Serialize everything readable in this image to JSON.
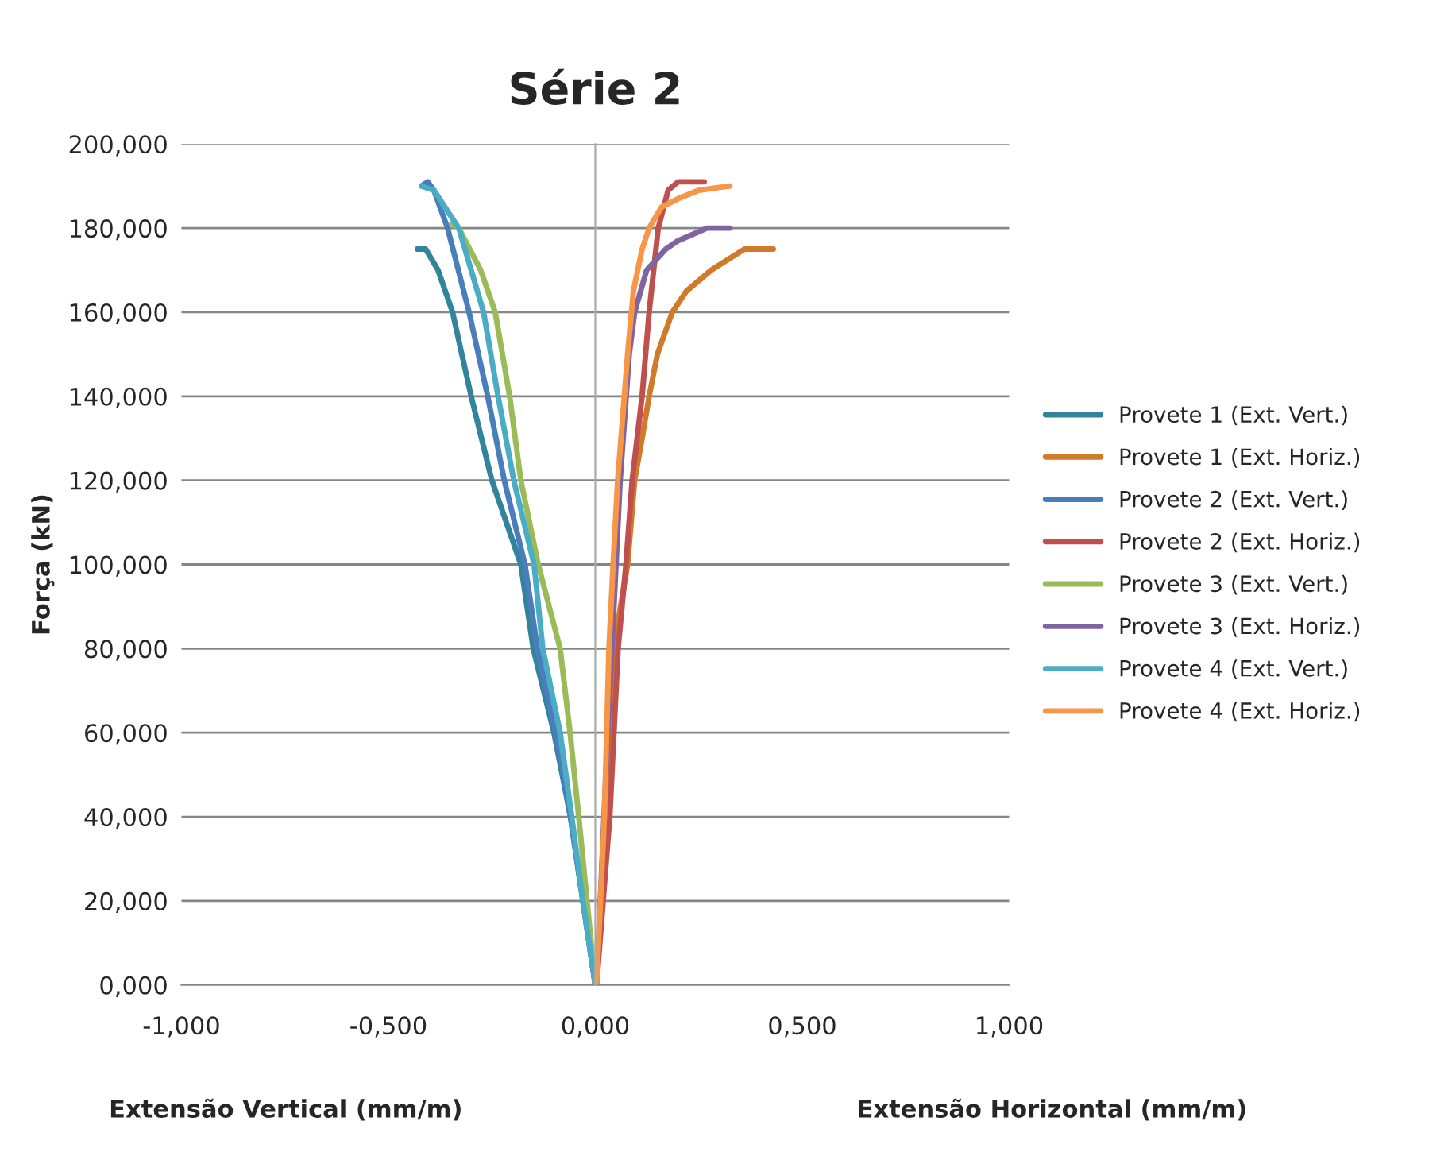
{
  "chart_data": {
    "type": "line",
    "title": "Série 2",
    "ylabel": "Força (kN)",
    "xlabel": "Extensão Vertical (mm/m)",
    "annotations": [
      "Extensão Horizontal (mm/m)"
    ],
    "xlim": [
      -1,
      1
    ],
    "ylim": [
      0,
      200
    ],
    "xticks": [
      {
        "value": -1,
        "label": "-1,000"
      },
      {
        "value": -0.5,
        "label": "-0,500"
      },
      {
        "value": 0,
        "label": "0,000"
      },
      {
        "value": 0.5,
        "label": "0,500"
      },
      {
        "value": 1,
        "label": "1,000"
      }
    ],
    "yticks": [
      {
        "value": 0,
        "label": "0,000"
      },
      {
        "value": 20,
        "label": "20,000"
      },
      {
        "value": 40,
        "label": "40,000"
      },
      {
        "value": 60,
        "label": "60,000"
      },
      {
        "value": 80,
        "label": "80,000"
      },
      {
        "value": 100,
        "label": "100,000"
      },
      {
        "value": 120,
        "label": "120,000"
      },
      {
        "value": 140,
        "label": "140,000"
      },
      {
        "value": 160,
        "label": "160,000"
      },
      {
        "value": 180,
        "label": "180,000"
      },
      {
        "value": 200,
        "label": "200,000"
      }
    ],
    "grid": "y",
    "legend": "right",
    "marker": "none",
    "series": [
      {
        "name": "Provete 1 (Ext. Vert.)",
        "color": "#31849b",
        "x": [
          0,
          -0.06,
          -0.1,
          -0.15,
          -0.18,
          -0.25,
          -0.3,
          -0.345,
          -0.38,
          -0.41,
          -0.43
        ],
        "values": [
          0,
          40,
          60,
          80,
          100,
          120,
          140,
          160,
          170,
          175,
          175
        ]
      },
      {
        "name": "Provete 1 (Ext. Horiz.)",
        "color": "#d07a2a",
        "x": [
          0.003,
          0.025,
          0.044,
          0.078,
          0.095,
          0.113,
          0.13,
          0.15,
          0.186,
          0.22,
          0.28,
          0.36,
          0.43
        ],
        "values": [
          0,
          40,
          80,
          100,
          120,
          130,
          140,
          150,
          160,
          165,
          170,
          175,
          175
        ]
      },
      {
        "name": "Provete 2 (Ext. Vert.)",
        "color": "#4a7ebb",
        "x": [
          0,
          -0.06,
          -0.096,
          -0.14,
          -0.17,
          -0.22,
          -0.26,
          -0.305,
          -0.357,
          -0.39,
          -0.405,
          -0.42
        ],
        "values": [
          0,
          40,
          60,
          80,
          100,
          120,
          140,
          160,
          180,
          189,
          191,
          190
        ]
      },
      {
        "name": "Provete 2 (Ext. Horiz.)",
        "color": "#c0504d",
        "x": [
          0.003,
          0.035,
          0.055,
          0.074,
          0.089,
          0.113,
          0.13,
          0.152,
          0.176,
          0.2,
          0.263
        ],
        "values": [
          0,
          40,
          80,
          100,
          120,
          140,
          160,
          180,
          189,
          191,
          191
        ]
      },
      {
        "name": "Provete 3 (Ext. Vert.)",
        "color": "#9bbb59",
        "x": [
          0,
          -0.04,
          -0.061,
          -0.085,
          -0.138,
          -0.18,
          -0.207,
          -0.242,
          -0.277,
          -0.33,
          -0.347
        ],
        "values": [
          0,
          40,
          60,
          80,
          100,
          120,
          140,
          160,
          170,
          180,
          181
        ]
      },
      {
        "name": "Provete 3 (Ext. Horiz.)",
        "color": "#8064a2",
        "x": [
          0.003,
          0.03,
          0.05,
          0.06,
          0.082,
          0.095,
          0.124,
          0.17,
          0.2,
          0.27,
          0.325
        ],
        "values": [
          0,
          60,
          100,
          120,
          150,
          160,
          170,
          175,
          177,
          180,
          180
        ]
      },
      {
        "name": "Provete 4 (Ext. Vert.)",
        "color": "#4bacc6",
        "x": [
          0,
          -0.03,
          -0.057,
          -0.085,
          -0.127,
          -0.148,
          -0.197,
          -0.235,
          -0.27,
          -0.33,
          -0.39,
          -0.42
        ],
        "values": [
          0,
          20,
          40,
          60,
          80,
          100,
          120,
          140,
          160,
          180,
          189,
          190
        ]
      },
      {
        "name": "Provete 4 (Ext. Horiz.)",
        "color": "#f79646",
        "x": [
          0.003,
          0.022,
          0.033,
          0.043,
          0.054,
          0.078,
          0.092,
          0.113,
          0.13,
          0.16,
          0.2,
          0.25,
          0.325
        ],
        "values": [
          0,
          40,
          80,
          100,
          120,
          150,
          165,
          175,
          180,
          185,
          187,
          189,
          190
        ]
      }
    ]
  }
}
